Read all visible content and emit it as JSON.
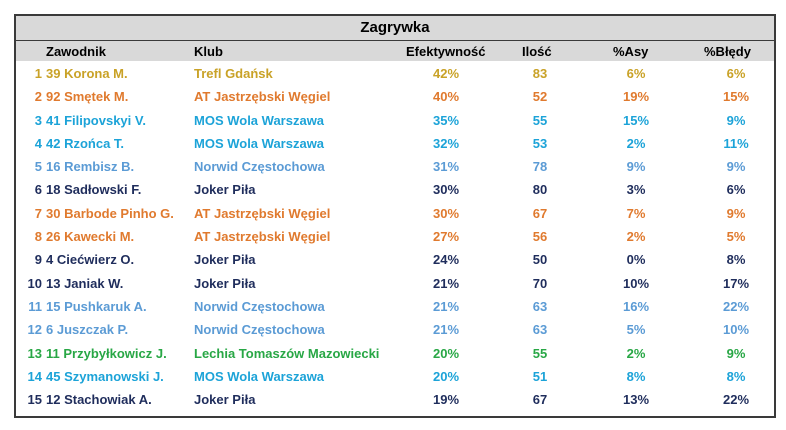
{
  "title": "Zagrywka",
  "headers": {
    "player": "Zawodnik",
    "club": "Klub",
    "efficiency": "Efektywność",
    "count": "Ilość",
    "aces": "%Asy",
    "errors": "%Błędy"
  },
  "colors": {
    "Trefl Gdańsk": "#c9a227",
    "AT Jastrzębski Węgiel": "#e07a2e",
    "MOS Wola Warszawa": "#1ca3d8",
    "Norwid Częstochowa": "#5b9bd5",
    "Joker Piła": "#1f2d5c",
    "Lechia Tomaszów Mazowiecki": "#28a745"
  },
  "rows": [
    {
      "num": "1",
      "player": "39 Korona M.",
      "club": "Trefl Gdańsk",
      "efficiency": "42%",
      "count": "83",
      "aces": "6%",
      "errors": "6%"
    },
    {
      "num": "2",
      "player": "92 Smętek M.",
      "club": "AT Jastrzębski Węgiel",
      "efficiency": "40%",
      "count": "52",
      "aces": "19%",
      "errors": "15%"
    },
    {
      "num": "3",
      "player": "41 Filipovskyi V.",
      "club": "MOS Wola Warszawa",
      "efficiency": "35%",
      "count": "55",
      "aces": "15%",
      "errors": "9%"
    },
    {
      "num": "4",
      "player": "42 Rzońca T.",
      "club": "MOS Wola Warszawa",
      "efficiency": "32%",
      "count": "53",
      "aces": "2%",
      "errors": "11%"
    },
    {
      "num": "5",
      "player": "16 Rembisz B.",
      "club": "Norwid Częstochowa",
      "efficiency": "31%",
      "count": "78",
      "aces": "9%",
      "errors": "9%"
    },
    {
      "num": "6",
      "player": "18 Sadłowski F.",
      "club": "Joker Piła",
      "efficiency": "30%",
      "count": "80",
      "aces": "3%",
      "errors": "6%"
    },
    {
      "num": "7",
      "player": "30 Barbode Pinho G.",
      "club": "AT Jastrzębski Węgiel",
      "efficiency": "30%",
      "count": "67",
      "aces": "7%",
      "errors": "9%"
    },
    {
      "num": "8",
      "player": "26 Kawecki M.",
      "club": "AT Jastrzębski Węgiel",
      "efficiency": "27%",
      "count": "56",
      "aces": "2%",
      "errors": "5%"
    },
    {
      "num": "9",
      "player": "4 Ciećwierz O.",
      "club": "Joker Piła",
      "efficiency": "24%",
      "count": "50",
      "aces": "0%",
      "errors": "8%"
    },
    {
      "num": "10",
      "player": "13 Janiak W.",
      "club": "Joker Piła",
      "efficiency": "21%",
      "count": "70",
      "aces": "10%",
      "errors": "17%"
    },
    {
      "num": "11",
      "player": "15 Pushkaruk A.",
      "club": "Norwid Częstochowa",
      "efficiency": "21%",
      "count": "63",
      "aces": "16%",
      "errors": "22%"
    },
    {
      "num": "12",
      "player": "6 Juszczak P.",
      "club": "Norwid Częstochowa",
      "efficiency": "21%",
      "count": "63",
      "aces": "5%",
      "errors": "10%"
    },
    {
      "num": "13",
      "player": "11 Przybyłkowicz J.",
      "club": "Lechia Tomaszów Mazowiecki",
      "efficiency": "20%",
      "count": "55",
      "aces": "2%",
      "errors": "9%"
    },
    {
      "num": "14",
      "player": "45 Szymanowski J.",
      "club": "MOS Wola Warszawa",
      "efficiency": "20%",
      "count": "51",
      "aces": "8%",
      "errors": "8%"
    },
    {
      "num": "15",
      "player": "12 Stachowiak A.",
      "club": "Joker Piła",
      "efficiency": "19%",
      "count": "67",
      "aces": "13%",
      "errors": "22%"
    }
  ]
}
